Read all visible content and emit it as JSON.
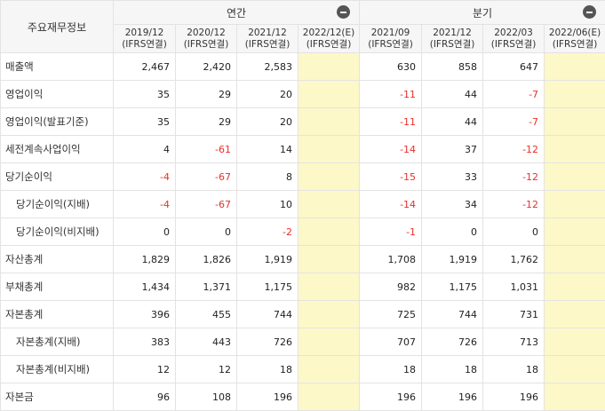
{
  "table": {
    "corner_label": "주요재무정보",
    "groups": [
      {
        "label": "연간",
        "collapse_icon": "minus-circle-icon"
      },
      {
        "label": "분기",
        "collapse_icon": "minus-circle-icon"
      }
    ],
    "periods": [
      {
        "date": "2019/12",
        "basis": "(IFRS연결)"
      },
      {
        "date": "2020/12",
        "basis": "(IFRS연결)"
      },
      {
        "date": "2021/12",
        "basis": "(IFRS연결)"
      },
      {
        "date": "2022/12(E)",
        "basis": "(IFRS연결)"
      },
      {
        "date": "2021/09",
        "basis": "(IFRS연결)"
      },
      {
        "date": "2021/12",
        "basis": "(IFRS연결)"
      },
      {
        "date": "2022/03",
        "basis": "(IFRS연결)"
      },
      {
        "date": "2022/06(E)",
        "basis": "(IFRS연결)"
      }
    ],
    "rows": [
      {
        "label": "매출액",
        "indent": false,
        "values": [
          "2,467",
          "2,420",
          "2,583",
          "",
          "630",
          "858",
          "647",
          ""
        ]
      },
      {
        "label": "영업이익",
        "indent": false,
        "values": [
          "35",
          "29",
          "20",
          "",
          "-11",
          "44",
          "-7",
          ""
        ]
      },
      {
        "label": "영업이익(발표기준)",
        "indent": false,
        "values": [
          "35",
          "29",
          "20",
          "",
          "-11",
          "44",
          "-7",
          ""
        ]
      },
      {
        "label": "세전계속사업이익",
        "indent": false,
        "values": [
          "4",
          "-61",
          "14",
          "",
          "-14",
          "37",
          "-12",
          ""
        ]
      },
      {
        "label": "당기순이익",
        "indent": false,
        "values": [
          "-4",
          "-67",
          "8",
          "",
          "-15",
          "33",
          "-12",
          ""
        ]
      },
      {
        "label": "당기순이익(지배)",
        "indent": true,
        "values": [
          "-4",
          "-67",
          "10",
          "",
          "-14",
          "34",
          "-12",
          ""
        ]
      },
      {
        "label": "당기순이익(비지배)",
        "indent": true,
        "values": [
          "0",
          "0",
          "-2",
          "",
          "-1",
          "0",
          "0",
          ""
        ]
      },
      {
        "label": "자산총계",
        "indent": false,
        "values": [
          "1,829",
          "1,826",
          "1,919",
          "",
          "1,708",
          "1,919",
          "1,762",
          ""
        ]
      },
      {
        "label": "부채총계",
        "indent": false,
        "values": [
          "1,434",
          "1,371",
          "1,175",
          "",
          "982",
          "1,175",
          "1,031",
          ""
        ]
      },
      {
        "label": "자본총계",
        "indent": false,
        "values": [
          "396",
          "455",
          "744",
          "",
          "725",
          "744",
          "731",
          ""
        ]
      },
      {
        "label": "자본총계(지배)",
        "indent": true,
        "values": [
          "383",
          "443",
          "726",
          "",
          "707",
          "726",
          "713",
          ""
        ]
      },
      {
        "label": "자본총계(비지배)",
        "indent": true,
        "values": [
          "12",
          "12",
          "18",
          "",
          "18",
          "18",
          "18",
          ""
        ]
      },
      {
        "label": "자본금",
        "indent": false,
        "values": [
          "96",
          "108",
          "196",
          "",
          "196",
          "196",
          "196",
          ""
        ]
      }
    ],
    "colors": {
      "negative": "#e8302b",
      "estimate_bg": "#fdf8c8",
      "header_bg": "#f6f6f6"
    }
  }
}
